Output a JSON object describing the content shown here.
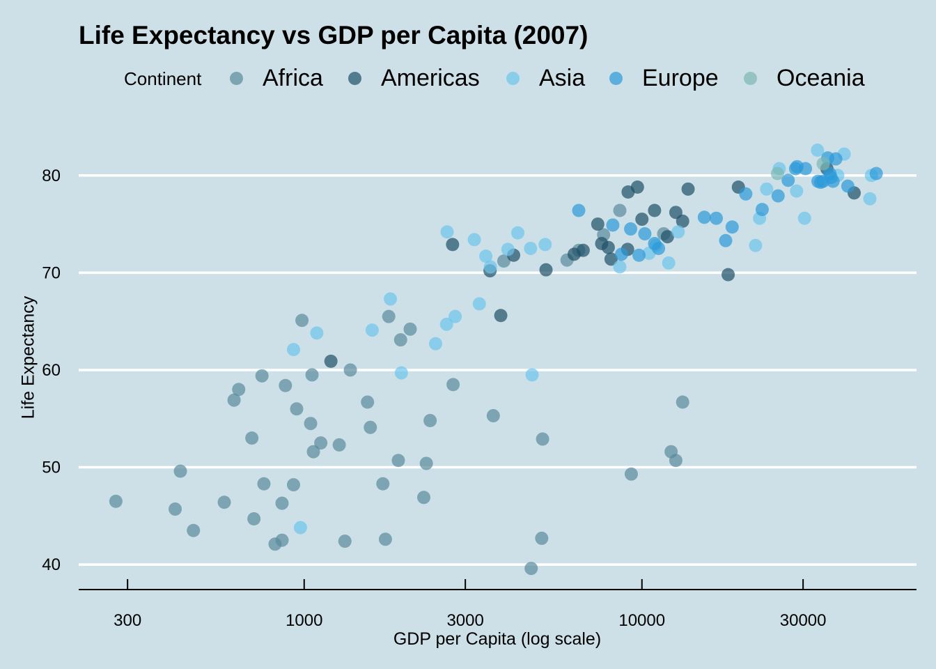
{
  "chart_data": {
    "type": "scatter",
    "title": "Life Expectancy vs GDP per Capita (2007)",
    "xlabel": "GDP per Capita (log scale)",
    "ylabel": "Life Expectancy",
    "x_scale": "log10",
    "xlim": [
      215,
      65000
    ],
    "ylim": [
      37.5,
      85.5
    ],
    "x_ticks": [
      300,
      1000,
      3000,
      10000,
      30000
    ],
    "x_tick_labels": [
      "300",
      "1000",
      "3000",
      "10000",
      "30000"
    ],
    "y_ticks": [
      40,
      50,
      60,
      70,
      80
    ],
    "y_tick_labels": [
      "40",
      "50",
      "60",
      "70",
      "80"
    ],
    "grid": "horizontal major lines",
    "legend": {
      "title": "Continent",
      "position": "top"
    },
    "series": [
      {
        "name": "Africa",
        "color": "#5a8a9c",
        "points": [
          [
            277,
            46.5
          ],
          [
            415,
            45.7
          ],
          [
            470,
            43.5
          ],
          [
            430,
            49.6
          ],
          [
            580,
            46.4
          ],
          [
            620,
            56.9
          ],
          [
            640,
            58.0
          ],
          [
            700,
            53.0
          ],
          [
            710,
            44.7
          ],
          [
            750,
            59.4
          ],
          [
            760,
            48.3
          ],
          [
            820,
            42.1
          ],
          [
            860,
            42.5
          ],
          [
            860,
            46.3
          ],
          [
            880,
            58.4
          ],
          [
            930,
            48.2
          ],
          [
            950,
            56.0
          ],
          [
            985,
            65.1
          ],
          [
            1045,
            54.5
          ],
          [
            1055,
            59.5
          ],
          [
            1065,
            51.6
          ],
          [
            1120,
            52.5
          ],
          [
            1270,
            52.3
          ],
          [
            1320,
            42.4
          ],
          [
            1370,
            60.0
          ],
          [
            1540,
            56.7
          ],
          [
            1570,
            54.1
          ],
          [
            1710,
            48.3
          ],
          [
            1740,
            42.6
          ],
          [
            1780,
            65.5
          ],
          [
            1900,
            50.7
          ],
          [
            1930,
            63.1
          ],
          [
            2060,
            64.2
          ],
          [
            2300,
            50.4
          ],
          [
            2360,
            54.8
          ],
          [
            2260,
            46.9
          ],
          [
            2760,
            58.5
          ],
          [
            3630,
            55.3
          ],
          [
            3900,
            71.2
          ],
          [
            4700,
            39.6
          ],
          [
            5050,
            42.7
          ],
          [
            5080,
            52.9
          ],
          [
            6000,
            71.3
          ],
          [
            6500,
            72.3
          ],
          [
            7700,
            73.9
          ],
          [
            8600,
            76.4
          ],
          [
            9300,
            49.3
          ],
          [
            11600,
            74.0
          ],
          [
            12200,
            51.6
          ],
          [
            12600,
            50.7
          ],
          [
            13200,
            56.7
          ]
        ]
      },
      {
        "name": "Americas",
        "color": "#1e5068",
        "points": [
          [
            1200,
            60.9
          ],
          [
            2750,
            72.9
          ],
          [
            3550,
            70.2
          ],
          [
            3820,
            65.6
          ],
          [
            4170,
            71.8
          ],
          [
            5200,
            70.3
          ],
          [
            6300,
            71.9
          ],
          [
            6700,
            72.3
          ],
          [
            7400,
            75.0
          ],
          [
            7600,
            73.0
          ],
          [
            7950,
            72.6
          ],
          [
            8100,
            71.4
          ],
          [
            9100,
            78.3
          ],
          [
            9070,
            72.4
          ],
          [
            9700,
            78.8
          ],
          [
            10000,
            75.5
          ],
          [
            10900,
            76.4
          ],
          [
            11900,
            73.7
          ],
          [
            12600,
            76.2
          ],
          [
            13200,
            75.3
          ],
          [
            13700,
            78.6
          ],
          [
            18000,
            69.8
          ],
          [
            19300,
            78.8
          ],
          [
            35300,
            80.7
          ],
          [
            42500,
            78.2
          ]
        ]
      },
      {
        "name": "Asia",
        "color": "#6ec4ec",
        "points": [
          [
            975,
            43.8
          ],
          [
            930,
            62.1
          ],
          [
            1090,
            63.8
          ],
          [
            1590,
            64.1
          ],
          [
            1800,
            67.3
          ],
          [
            1940,
            59.7
          ],
          [
            2450,
            62.7
          ],
          [
            2640,
            64.7
          ],
          [
            2800,
            65.5
          ],
          [
            2650,
            74.2
          ],
          [
            3190,
            73.4
          ],
          [
            3300,
            66.8
          ],
          [
            3450,
            71.7
          ],
          [
            3560,
            70.6
          ],
          [
            4010,
            72.4
          ],
          [
            4290,
            74.1
          ],
          [
            4680,
            72.5
          ],
          [
            4730,
            59.5
          ],
          [
            5170,
            72.9
          ],
          [
            8600,
            70.6
          ],
          [
            10500,
            72.0
          ],
          [
            11000,
            72.8
          ],
          [
            12000,
            71.0
          ],
          [
            12800,
            74.2
          ],
          [
            21700,
            72.8
          ],
          [
            22300,
            75.6
          ],
          [
            23400,
            78.6
          ],
          [
            25500,
            80.7
          ],
          [
            28700,
            78.4
          ],
          [
            30300,
            75.6
          ],
          [
            33100,
            82.6
          ],
          [
            38000,
            80.0
          ],
          [
            39700,
            82.2
          ],
          [
            47300,
            77.6
          ],
          [
            47800,
            80.0
          ]
        ]
      },
      {
        "name": "Europe",
        "color": "#2c9ad8",
        "points": [
          [
            6500,
            76.4
          ],
          [
            8200,
            74.9
          ],
          [
            8700,
            71.9
          ],
          [
            9260,
            74.5
          ],
          [
            9800,
            71.8
          ],
          [
            10200,
            74.0
          ],
          [
            10900,
            73.0
          ],
          [
            11200,
            72.5
          ],
          [
            15300,
            75.7
          ],
          [
            16600,
            75.6
          ],
          [
            17700,
            73.3
          ],
          [
            18500,
            74.7
          ],
          [
            20300,
            78.1
          ],
          [
            22700,
            76.5
          ],
          [
            25300,
            77.9
          ],
          [
            27100,
            79.5
          ],
          [
            28500,
            80.7
          ],
          [
            28800,
            80.9
          ],
          [
            30500,
            80.7
          ],
          [
            33200,
            79.4
          ],
          [
            33800,
            79.3
          ],
          [
            34400,
            79.4
          ],
          [
            35500,
            81.8
          ],
          [
            36000,
            80.2
          ],
          [
            36300,
            79.8
          ],
          [
            36800,
            79.4
          ],
          [
            37500,
            81.7
          ],
          [
            40700,
            78.9
          ],
          [
            49400,
            80.2
          ]
        ]
      },
      {
        "name": "Oceania",
        "color": "#7ab8b4",
        "points": [
          [
            25200,
            80.2
          ],
          [
            34400,
            81.2
          ]
        ]
      }
    ]
  }
}
